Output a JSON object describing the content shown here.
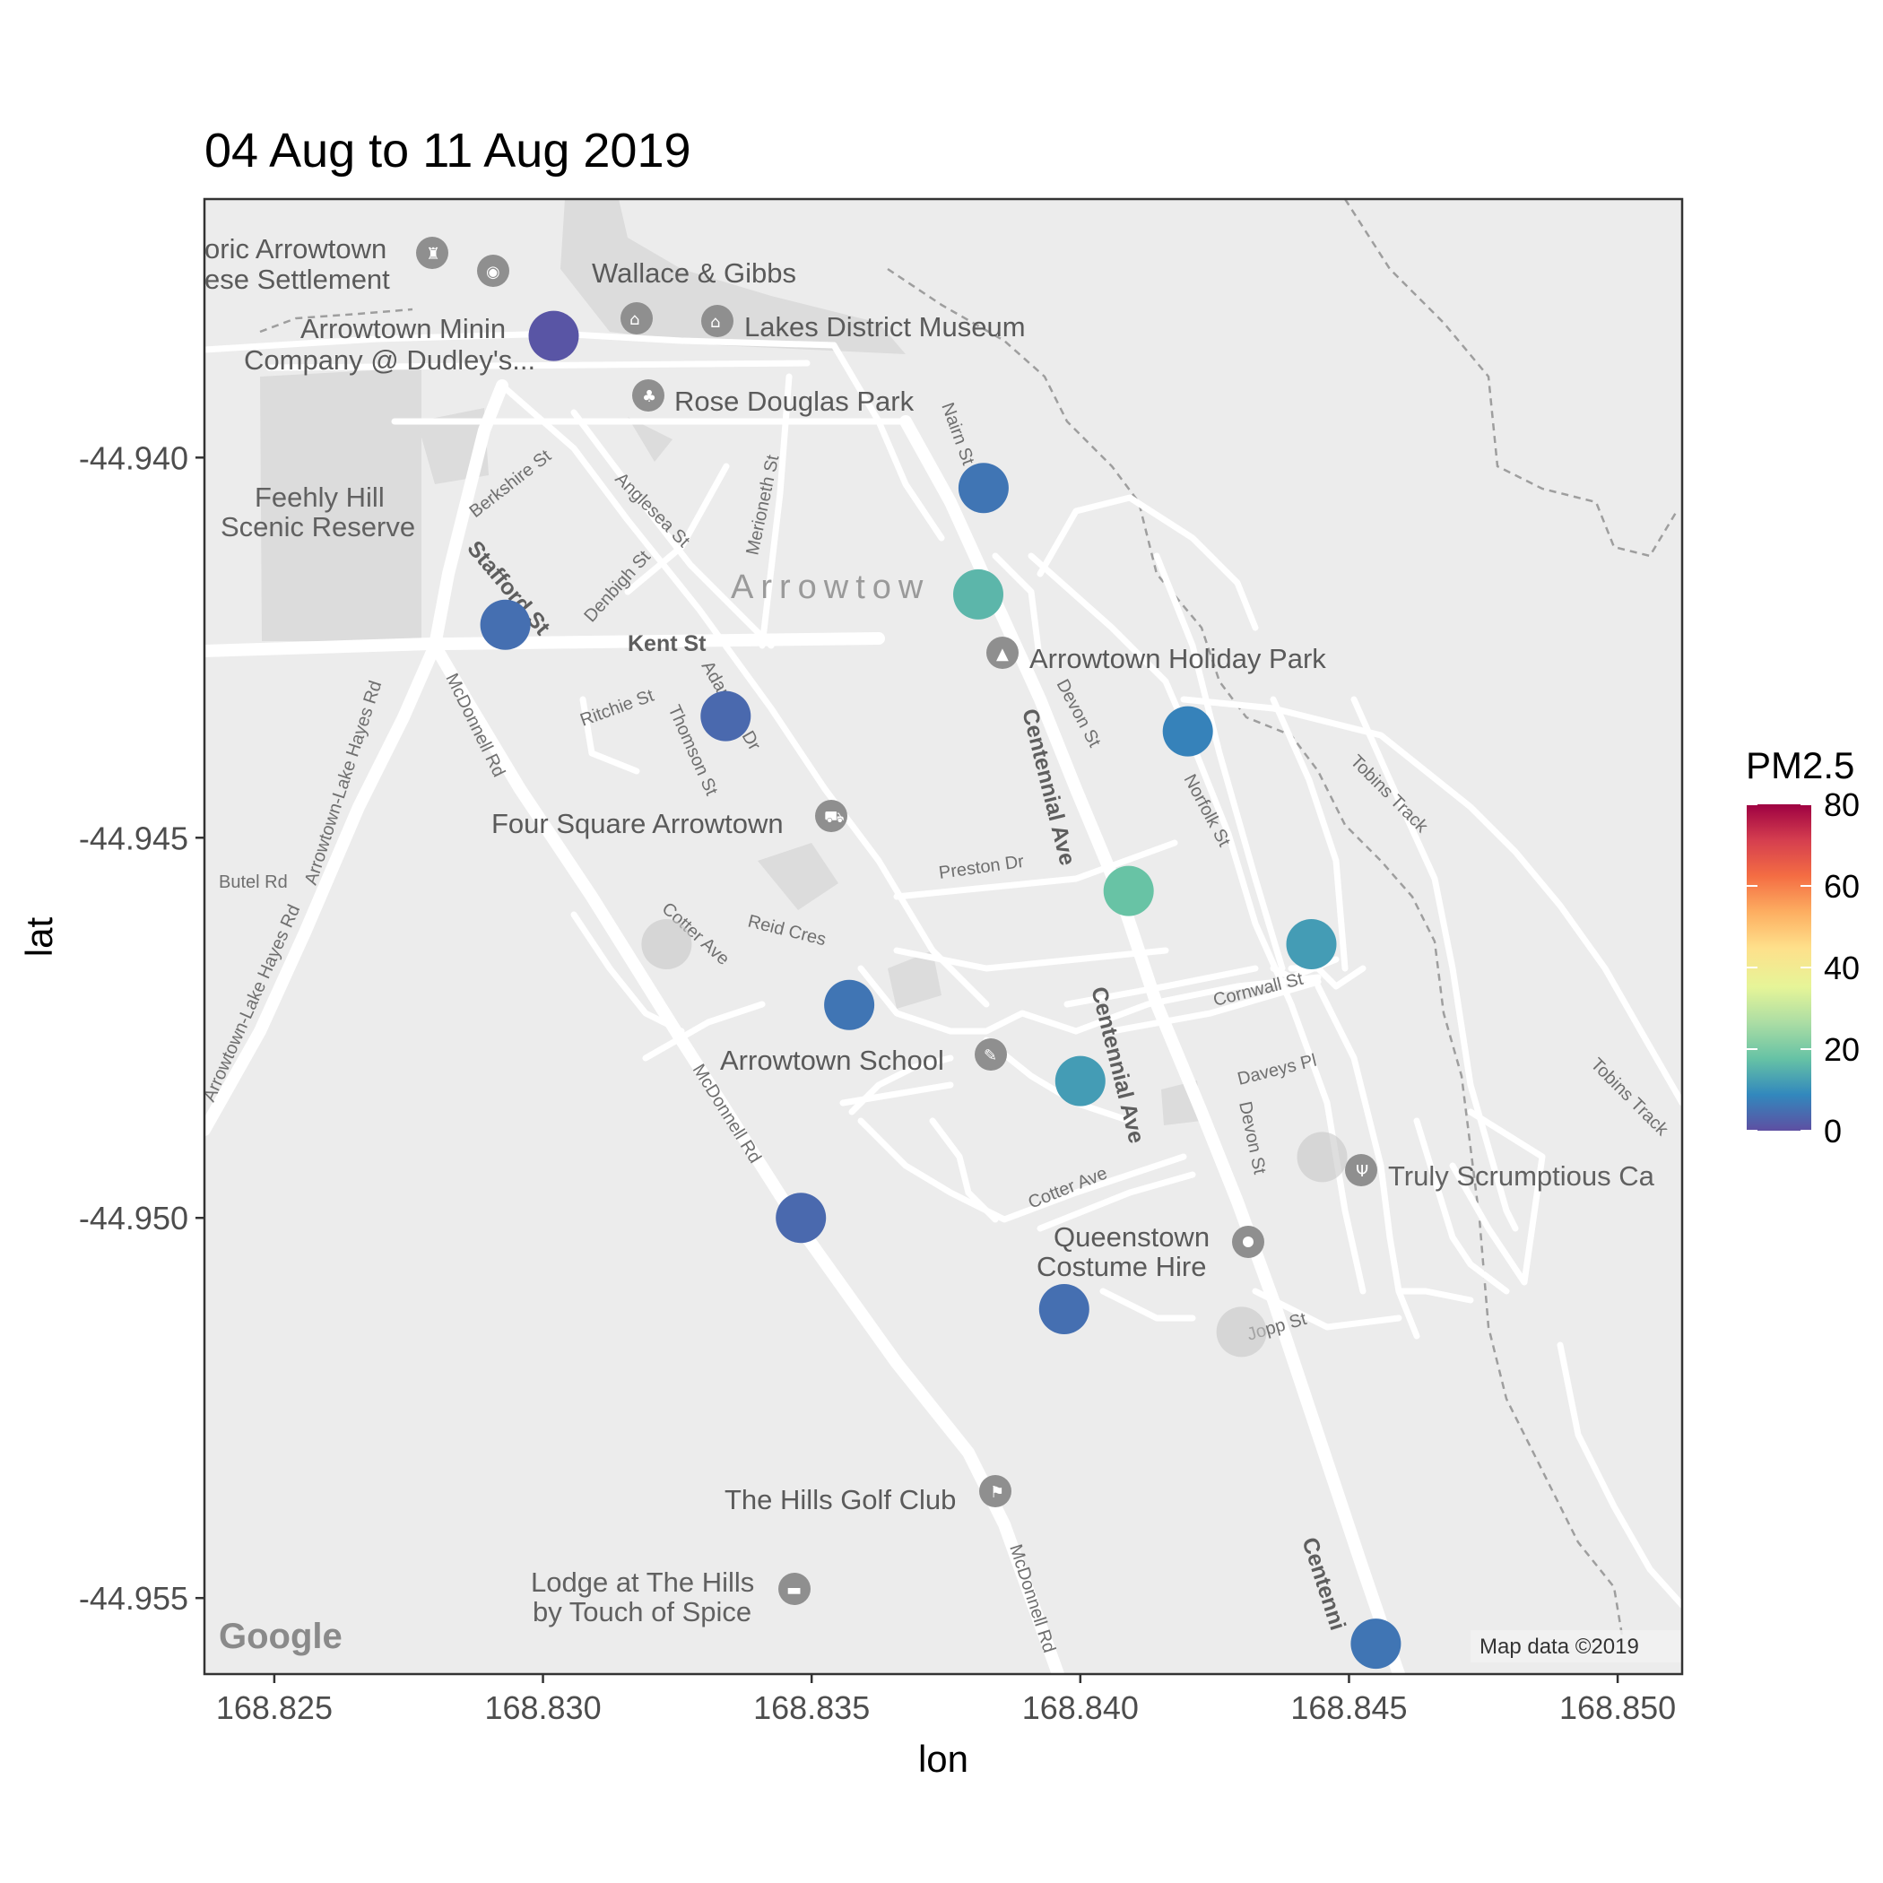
{
  "chart_data": {
    "type": "scatter",
    "title": "04 Aug to 11 Aug 2019",
    "xlabel": "lon",
    "ylabel": "lat",
    "xlim": [
      168.8237,
      168.8512
    ],
    "ylim": [
      -44.956,
      -44.9366
    ],
    "xticks": [
      168.825,
      168.83,
      168.835,
      168.84,
      168.845,
      168.85
    ],
    "xtick_labels": [
      "168.825",
      "168.830",
      "168.835",
      "168.840",
      "168.845",
      "168.850"
    ],
    "yticks": [
      -44.94,
      -44.945,
      -44.95,
      -44.955
    ],
    "ytick_labels": [
      "-44.940",
      "-44.945",
      "-44.950",
      "-44.955"
    ],
    "grid": false,
    "legend": {
      "title": "PM2.5",
      "placement": "right",
      "limits": [
        0,
        80
      ],
      "ticks": [
        0,
        20,
        40,
        60,
        80
      ],
      "tick_labels": [
        "0",
        "20",
        "40",
        "60",
        "80"
      ],
      "palette": "Spectral",
      "stops": [
        "#5E4FA2",
        "#3288BD",
        "#66C2A5",
        "#ABDDA4",
        "#E6F598",
        "#FEE08B",
        "#FDAE61",
        "#F46D43",
        "#D53E4F",
        "#9E0142"
      ]
    },
    "missing_color": "#c8c8c8",
    "points": [
      {
        "lon": 168.8302,
        "lat": -44.9384,
        "pm25": 1
      },
      {
        "lon": 168.8382,
        "lat": -44.9404,
        "pm25": 6
      },
      {
        "lon": 168.8381,
        "lat": -44.9418,
        "pm25": 16
      },
      {
        "lon": 168.8293,
        "lat": -44.9422,
        "pm25": 5
      },
      {
        "lon": 168.8334,
        "lat": -44.9434,
        "pm25": 4
      },
      {
        "lon": 168.842,
        "lat": -44.9436,
        "pm25": 8
      },
      {
        "lon": 168.8409,
        "lat": -44.9457,
        "pm25": 18
      },
      {
        "lon": 168.8443,
        "lat": -44.9464,
        "pm25": 12
      },
      {
        "lon": 168.8323,
        "lat": -44.9464,
        "pm25": null
      },
      {
        "lon": 168.8357,
        "lat": -44.9472,
        "pm25": 6
      },
      {
        "lon": 168.84,
        "lat": -44.9482,
        "pm25": 12
      },
      {
        "lon": 168.8445,
        "lat": -44.9492,
        "pm25": null
      },
      {
        "lon": 168.8348,
        "lat": -44.95,
        "pm25": 4
      },
      {
        "lon": 168.8397,
        "lat": -44.9512,
        "pm25": 5
      },
      {
        "lon": 168.843,
        "lat": -44.9515,
        "pm25": null
      },
      {
        "lon": 168.8455,
        "lat": -44.9556,
        "pm25": 6
      }
    ]
  },
  "map": {
    "town_label": "Arrowtow",
    "attribution": "Map data ©2019",
    "logo_text": "Google",
    "places": [
      {
        "name": "oric Arrowtown",
        "icon": "museum-icon"
      },
      {
        "name": "ese Settlement",
        "icon": "none"
      },
      {
        "name": "Wallace & Gibbs",
        "icon": "none"
      },
      {
        "name": "Arrowtown Minin",
        "icon": "none"
      },
      {
        "name": "Company @ Dudley's...",
        "icon": "none"
      },
      {
        "name": "Lakes District Museum",
        "icon": "museum-icon"
      },
      {
        "name": "Rose Douglas Park",
        "icon": "park-icon"
      },
      {
        "name": "Feehly Hill",
        "icon": "none"
      },
      {
        "name": "Scenic Reserve",
        "icon": "none"
      },
      {
        "name": "Arrowtown Holiday Park",
        "icon": "campground-icon"
      },
      {
        "name": "Four Square Arrowtown",
        "icon": "shopping-cart-icon"
      },
      {
        "name": "Arrowtown School",
        "icon": "school-icon"
      },
      {
        "name": "Truly Scrumptious Ca",
        "icon": "restaurant-icon"
      },
      {
        "name": "Queenstown",
        "icon": "location-pin-icon"
      },
      {
        "name": "Costume Hire",
        "icon": "none"
      },
      {
        "name": "The Hills Golf Club",
        "icon": "golf-icon"
      },
      {
        "name": "Lodge at The Hills",
        "icon": "hotel-icon"
      },
      {
        "name": "by Touch of Spice",
        "icon": "none"
      }
    ],
    "streets": [
      "Berkshire St",
      "Anglesea St",
      "Merioneth St",
      "Nairn St",
      "Stafford St",
      "Denbigh St",
      "Kent St",
      "Ritchie St",
      "Thomson St",
      "Adamson Dr",
      "Devon St",
      "Centennial Ave",
      "Centennial Ave",
      "Norfolk St",
      "Tobins Track",
      "Tobins Track",
      "McDonnell Rd",
      "McDonnell Rd",
      "McDonnell Rd",
      "Arrowtown-Lake Hayes Rd",
      "Arrowtown-Lake Hayes Rd",
      "Butel Rd",
      "Preston Dr",
      "Reid Cres",
      "Cotter Ave",
      "Cotter Ave",
      "Cornwall St",
      "Daveys Pl",
      "Devon St",
      "Jopp St",
      "Centenni"
    ]
  }
}
